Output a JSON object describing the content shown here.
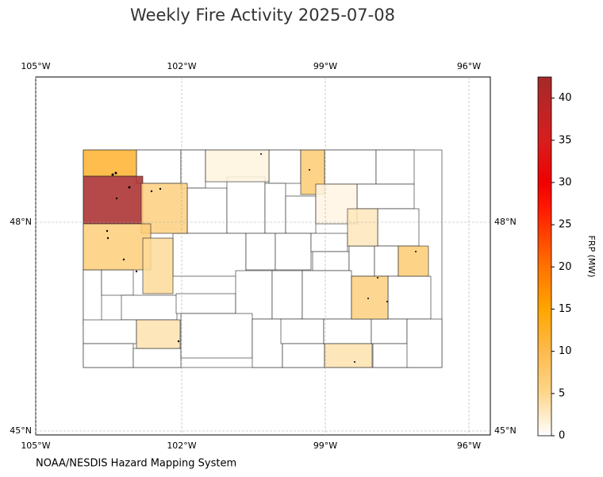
{
  "title": "Weekly Fire Activity 2025-07-08",
  "lon_labels": [
    "105°W",
    "102°W",
    "99°W",
    "96°W"
  ],
  "lat_labels": [
    "48°N",
    "45°N"
  ],
  "colorbar": {
    "label": "FRP (MW)",
    "lim": [
      0,
      42.5
    ],
    "ticks": [
      0,
      5,
      10,
      15,
      20,
      25,
      30,
      35,
      40
    ]
  },
  "county_frp": [
    12,
    42,
    6,
    6.5,
    4.5,
    1.5,
    7,
    1.2,
    3,
    7,
    6,
    3.5,
    3.5
  ],
  "credit": "NOAA/NESDIS Hazard Mapping System"
}
